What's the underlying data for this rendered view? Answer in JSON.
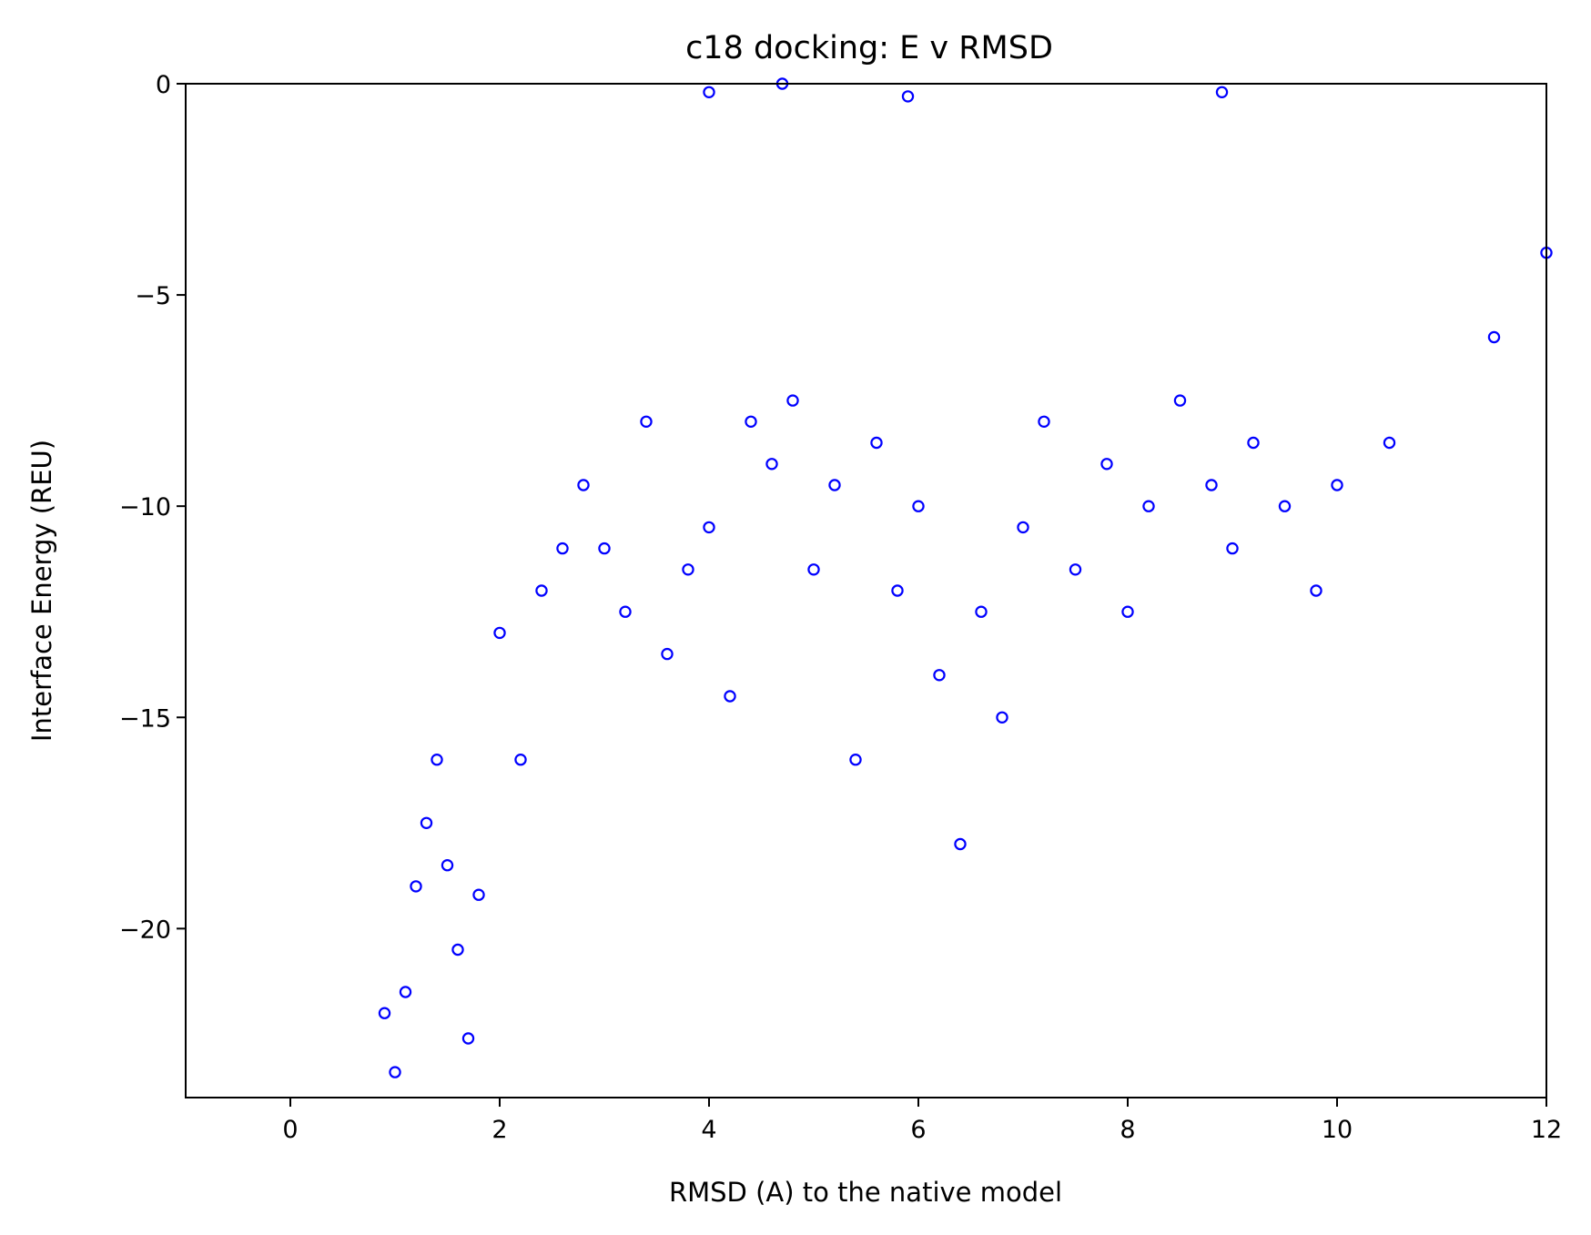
{
  "chart_data": {
    "type": "scatter",
    "title": "c18 docking: E v RMSD",
    "xlabel": "RMSD (A) to the native model",
    "ylabel": "Interface Energy (REU)",
    "xlim": [
      -1,
      12
    ],
    "ylim": [
      -24,
      0
    ],
    "xticks": [
      0,
      2,
      4,
      6,
      8,
      10,
      12
    ],
    "yticks": [
      0,
      -5,
      -10,
      -15,
      -20
    ],
    "xtick_labels": [
      "0",
      "2",
      "4",
      "6",
      "8",
      "10",
      "12"
    ],
    "ytick_labels": [
      "0",
      "−5",
      "−10",
      "−15",
      "−20"
    ],
    "grid": false,
    "legend": "none",
    "marker": "open-circle",
    "color": "#0000ff",
    "series": [
      {
        "points_sample": [
          [
            0.9,
            -22.0
          ],
          [
            1.0,
            -23.4
          ],
          [
            1.1,
            -21.5
          ],
          [
            1.2,
            -19.0
          ],
          [
            1.3,
            -17.5
          ],
          [
            1.4,
            -16.0
          ],
          [
            1.5,
            -18.5
          ],
          [
            1.6,
            -20.5
          ],
          [
            1.7,
            -22.6
          ],
          [
            1.8,
            -19.2
          ],
          [
            2.0,
            -13.0
          ],
          [
            2.2,
            -16.0
          ],
          [
            2.4,
            -12.0
          ],
          [
            2.6,
            -11.0
          ],
          [
            2.8,
            -9.5
          ],
          [
            3.0,
            -11.0
          ],
          [
            3.2,
            -12.5
          ],
          [
            3.4,
            -8.0
          ],
          [
            3.6,
            -13.5
          ],
          [
            3.8,
            -11.5
          ],
          [
            4.0,
            -10.5
          ],
          [
            4.2,
            -14.5
          ],
          [
            4.4,
            -8.0
          ],
          [
            4.6,
            -9.0
          ],
          [
            4.8,
            -7.5
          ],
          [
            5.0,
            -11.5
          ],
          [
            5.2,
            -9.5
          ],
          [
            5.4,
            -16.0
          ],
          [
            5.6,
            -8.5
          ],
          [
            5.8,
            -12.0
          ],
          [
            6.0,
            -10.0
          ],
          [
            6.2,
            -14.0
          ],
          [
            6.4,
            -18.0
          ],
          [
            6.6,
            -12.5
          ],
          [
            6.8,
            -15.0
          ],
          [
            7.0,
            -10.5
          ],
          [
            7.2,
            -8.0
          ],
          [
            7.5,
            -11.5
          ],
          [
            7.8,
            -9.0
          ],
          [
            8.0,
            -12.5
          ],
          [
            8.2,
            -10.0
          ],
          [
            8.5,
            -7.5
          ],
          [
            8.8,
            -9.5
          ],
          [
            9.0,
            -11.0
          ],
          [
            9.2,
            -8.5
          ],
          [
            9.5,
            -10.0
          ],
          [
            9.8,
            -12.0
          ],
          [
            10.0,
            -9.5
          ],
          [
            10.5,
            -8.5
          ],
          [
            11.5,
            -6.0
          ],
          [
            12.0,
            -4.0
          ],
          [
            4.0,
            -0.2
          ],
          [
            4.7,
            0.0
          ],
          [
            5.9,
            -0.3
          ],
          [
            8.9,
            -0.2
          ]
        ]
      }
    ]
  }
}
